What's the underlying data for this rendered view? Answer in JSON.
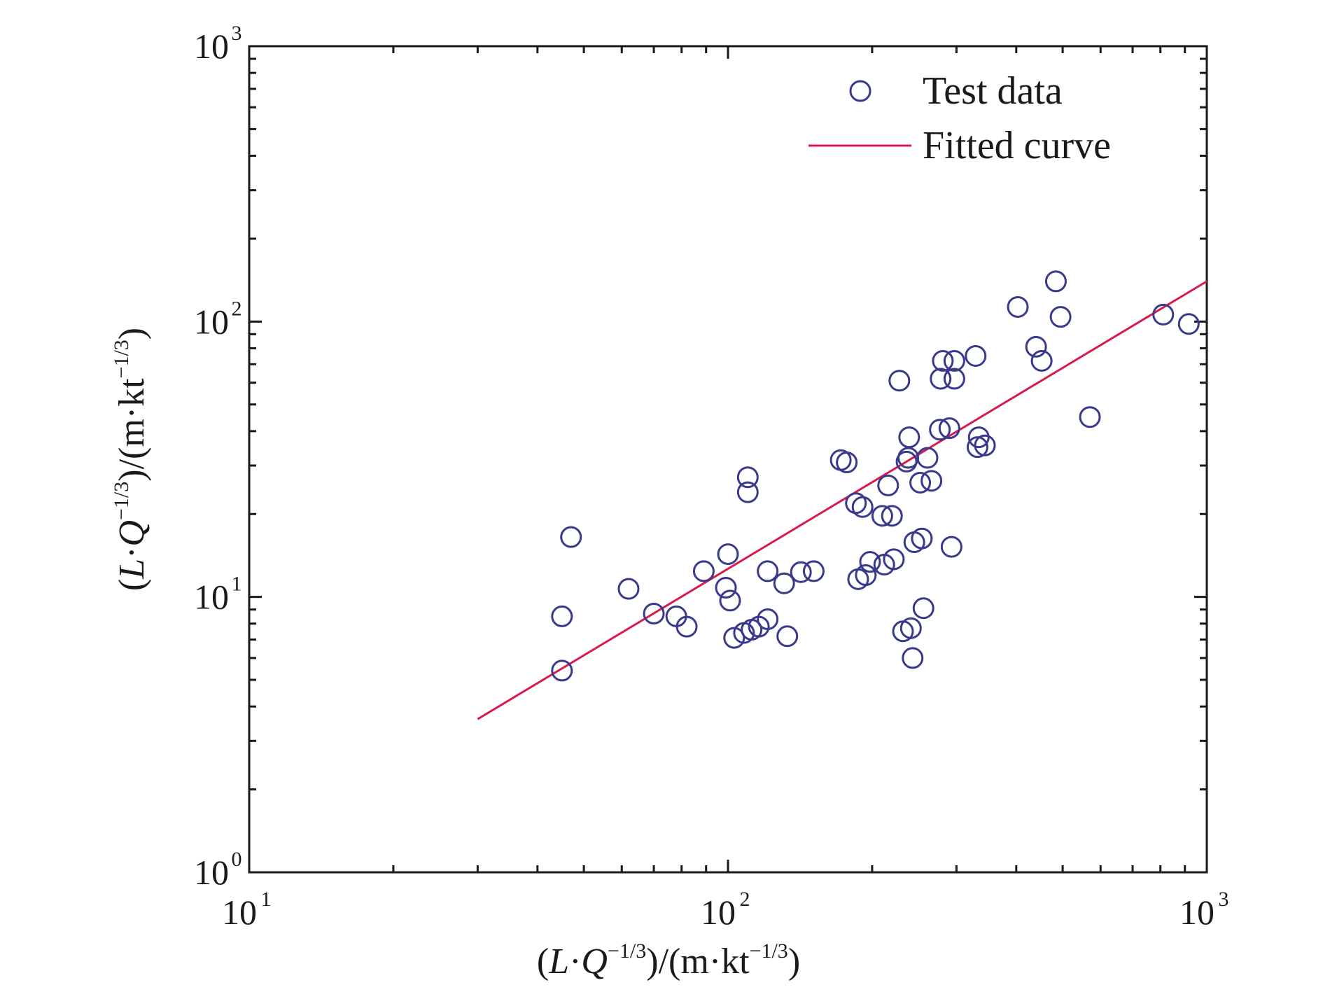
{
  "chart_data": {
    "type": "scatter",
    "title": "",
    "xlabel": "(L·Q⁻¹ᐟ³)/(m·kt⁻¹ᐟ³)",
    "ylabel": "(L·Q⁻¹ᐟ³)/(m·kt⁻¹ᐟ³)",
    "x_scale": "log",
    "y_scale": "log",
    "xlim": [
      10,
      1000
    ],
    "ylim": [
      1,
      1000
    ],
    "x_ticks": [
      {
        "base": "10",
        "exp": "1",
        "value": 10
      },
      {
        "base": "10",
        "exp": "2",
        "value": 100
      },
      {
        "base": "10",
        "exp": "3",
        "value": 1000
      }
    ],
    "y_ticks": [
      {
        "base": "10",
        "exp": "0",
        "value": 1
      },
      {
        "base": "10",
        "exp": "1",
        "value": 10
      },
      {
        "base": "10",
        "exp": "2",
        "value": 100
      },
      {
        "base": "10",
        "exp": "3",
        "value": 1000
      }
    ],
    "grid": false,
    "legend_position": "top-right",
    "series": [
      {
        "name": "Test data",
        "kind": "scatter",
        "marker": "open-circle",
        "color": "#3a3a8c",
        "points": [
          [
            45,
            8.5
          ],
          [
            45,
            5.4
          ],
          [
            47,
            16.5
          ],
          [
            62,
            10.7
          ],
          [
            70,
            8.7
          ],
          [
            78,
            8.5
          ],
          [
            82,
            7.8
          ],
          [
            89,
            12.4
          ],
          [
            99,
            10.8
          ],
          [
            100,
            14.3
          ],
          [
            101,
            9.7
          ],
          [
            103,
            7.1
          ],
          [
            108,
            7.4
          ],
          [
            110,
            27.2
          ],
          [
            110,
            24.0
          ],
          [
            112,
            7.6
          ],
          [
            116,
            7.8
          ],
          [
            121,
            8.3
          ],
          [
            121,
            12.4
          ],
          [
            131,
            11.2
          ],
          [
            133,
            7.2
          ],
          [
            142,
            12.3
          ],
          [
            151,
            12.4
          ],
          [
            172,
            31.4
          ],
          [
            177,
            30.8
          ],
          [
            185,
            21.9
          ],
          [
            187,
            11.6
          ],
          [
            191,
            21.2
          ],
          [
            194,
            12.0
          ],
          [
            198,
            13.4
          ],
          [
            210,
            19.7
          ],
          [
            212,
            13.1
          ],
          [
            216,
            25.4
          ],
          [
            220,
            19.7
          ],
          [
            222,
            13.7
          ],
          [
            228,
            61.0
          ],
          [
            232,
            7.5
          ],
          [
            236,
            31.0
          ],
          [
            238,
            32.0
          ],
          [
            239,
            38.0
          ],
          [
            241,
            7.7
          ],
          [
            243,
            6.0
          ],
          [
            245,
            15.8
          ],
          [
            252,
            26.0
          ],
          [
            254,
            16.3
          ],
          [
            256,
            9.1
          ],
          [
            261,
            32.0
          ],
          [
            266,
            26.4
          ],
          [
            277,
            40.5
          ],
          [
            278,
            62.0
          ],
          [
            281,
            72.0
          ],
          [
            290,
            41.0
          ],
          [
            293,
            15.2
          ],
          [
            297,
            62.0
          ],
          [
            297,
            72.0
          ],
          [
            329,
            75.0
          ],
          [
            332,
            35.0
          ],
          [
            334,
            38.0
          ],
          [
            344,
            35.5
          ],
          [
            403,
            113.0
          ],
          [
            440,
            81.0
          ],
          [
            452,
            72.0
          ],
          [
            484,
            140.0
          ],
          [
            495,
            104.0
          ],
          [
            570,
            45.0
          ],
          [
            811,
            106.0
          ],
          [
            917,
            98.0
          ]
        ]
      },
      {
        "name": "Fitted curve",
        "kind": "line",
        "color": "#d81b4a",
        "points": [
          [
            30,
            3.6
          ],
          [
            1000,
            140.0
          ]
        ]
      }
    ]
  }
}
